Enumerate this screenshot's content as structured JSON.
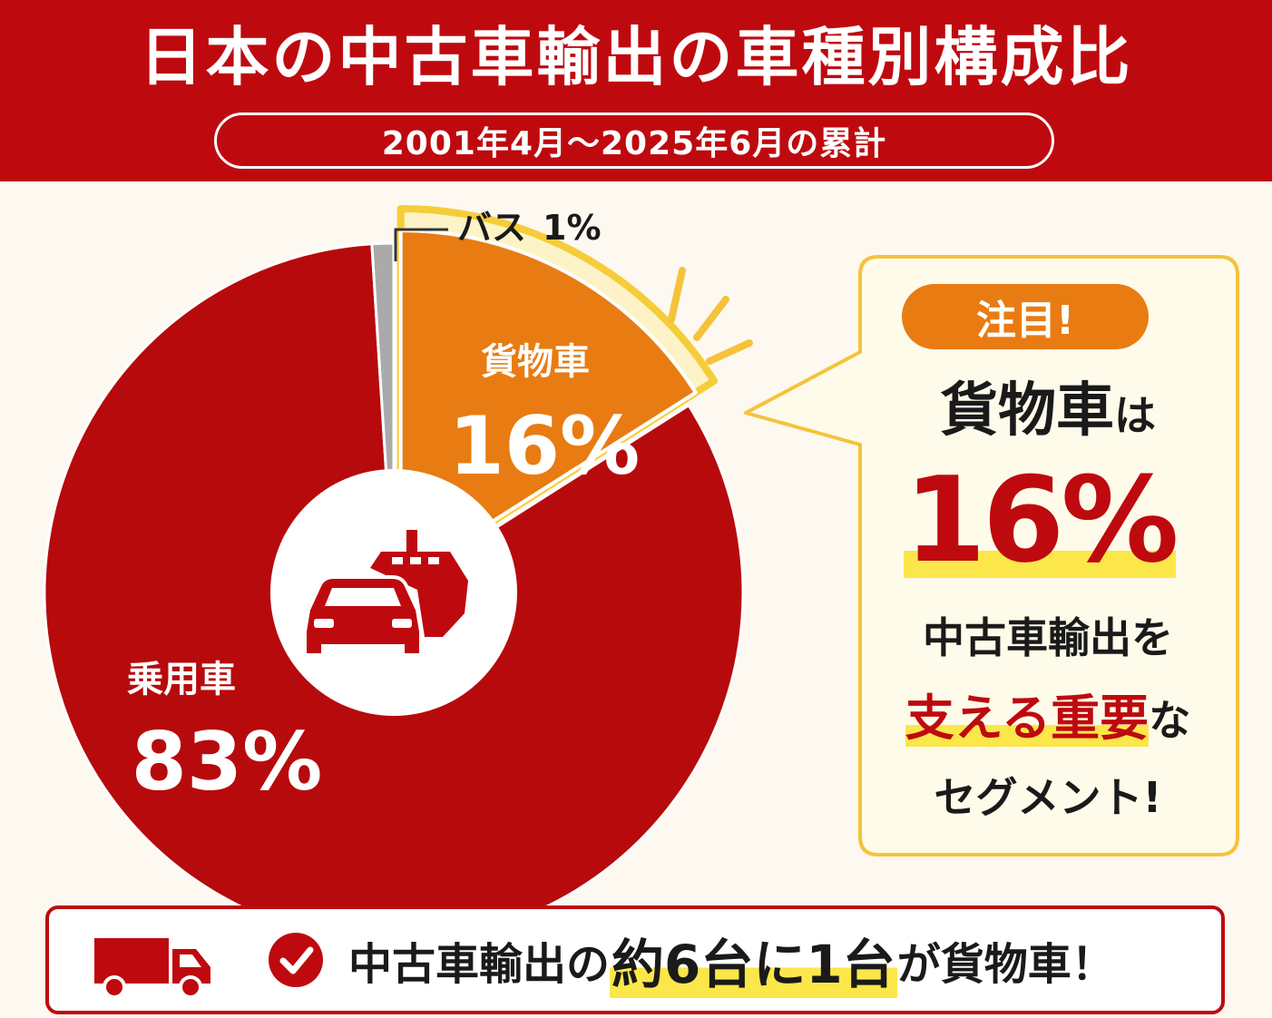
{
  "header": {
    "title": "日本の中古車輸出の車種別構成比",
    "subtitle": "2001年4月～2025年6月の累計"
  },
  "chart_data": {
    "type": "pie",
    "title": "日本の中古車輸出の車種別構成比",
    "subtitle": "2001年4月～2025年6月の累計",
    "categories": [
      "乗用車",
      "貨物車",
      "バス"
    ],
    "values": [
      83,
      16,
      1
    ],
    "labels": [
      "83%",
      "16%",
      "1%"
    ],
    "colors": [
      "#b70a0c",
      "#e87c12",
      "#aaaaaa"
    ],
    "highlighted": "貨物車",
    "center_icon": "car-ship-icon"
  },
  "callout": {
    "badge": "注目!",
    "line1_main": "貨物車",
    "line1_tail": "は",
    "percent": "16%",
    "line3": "中古車輸出を",
    "line4_red": "支える重要",
    "line4_tail": "な",
    "line5": "セグメント!"
  },
  "bottom": {
    "truck_icon": "truck-icon",
    "check_icon": "check-circle-icon",
    "text_a": "中古車輸出の",
    "text_hl": "約6台に1台",
    "text_b": "が貨物車！"
  },
  "colors": {
    "brand_red": "#be0a0f",
    "orange": "#e87c12",
    "gray": "#aaaaaa",
    "yellow": "#fbe74a",
    "gold_outline": "#f5cd3a",
    "cream": "#fffbea"
  }
}
